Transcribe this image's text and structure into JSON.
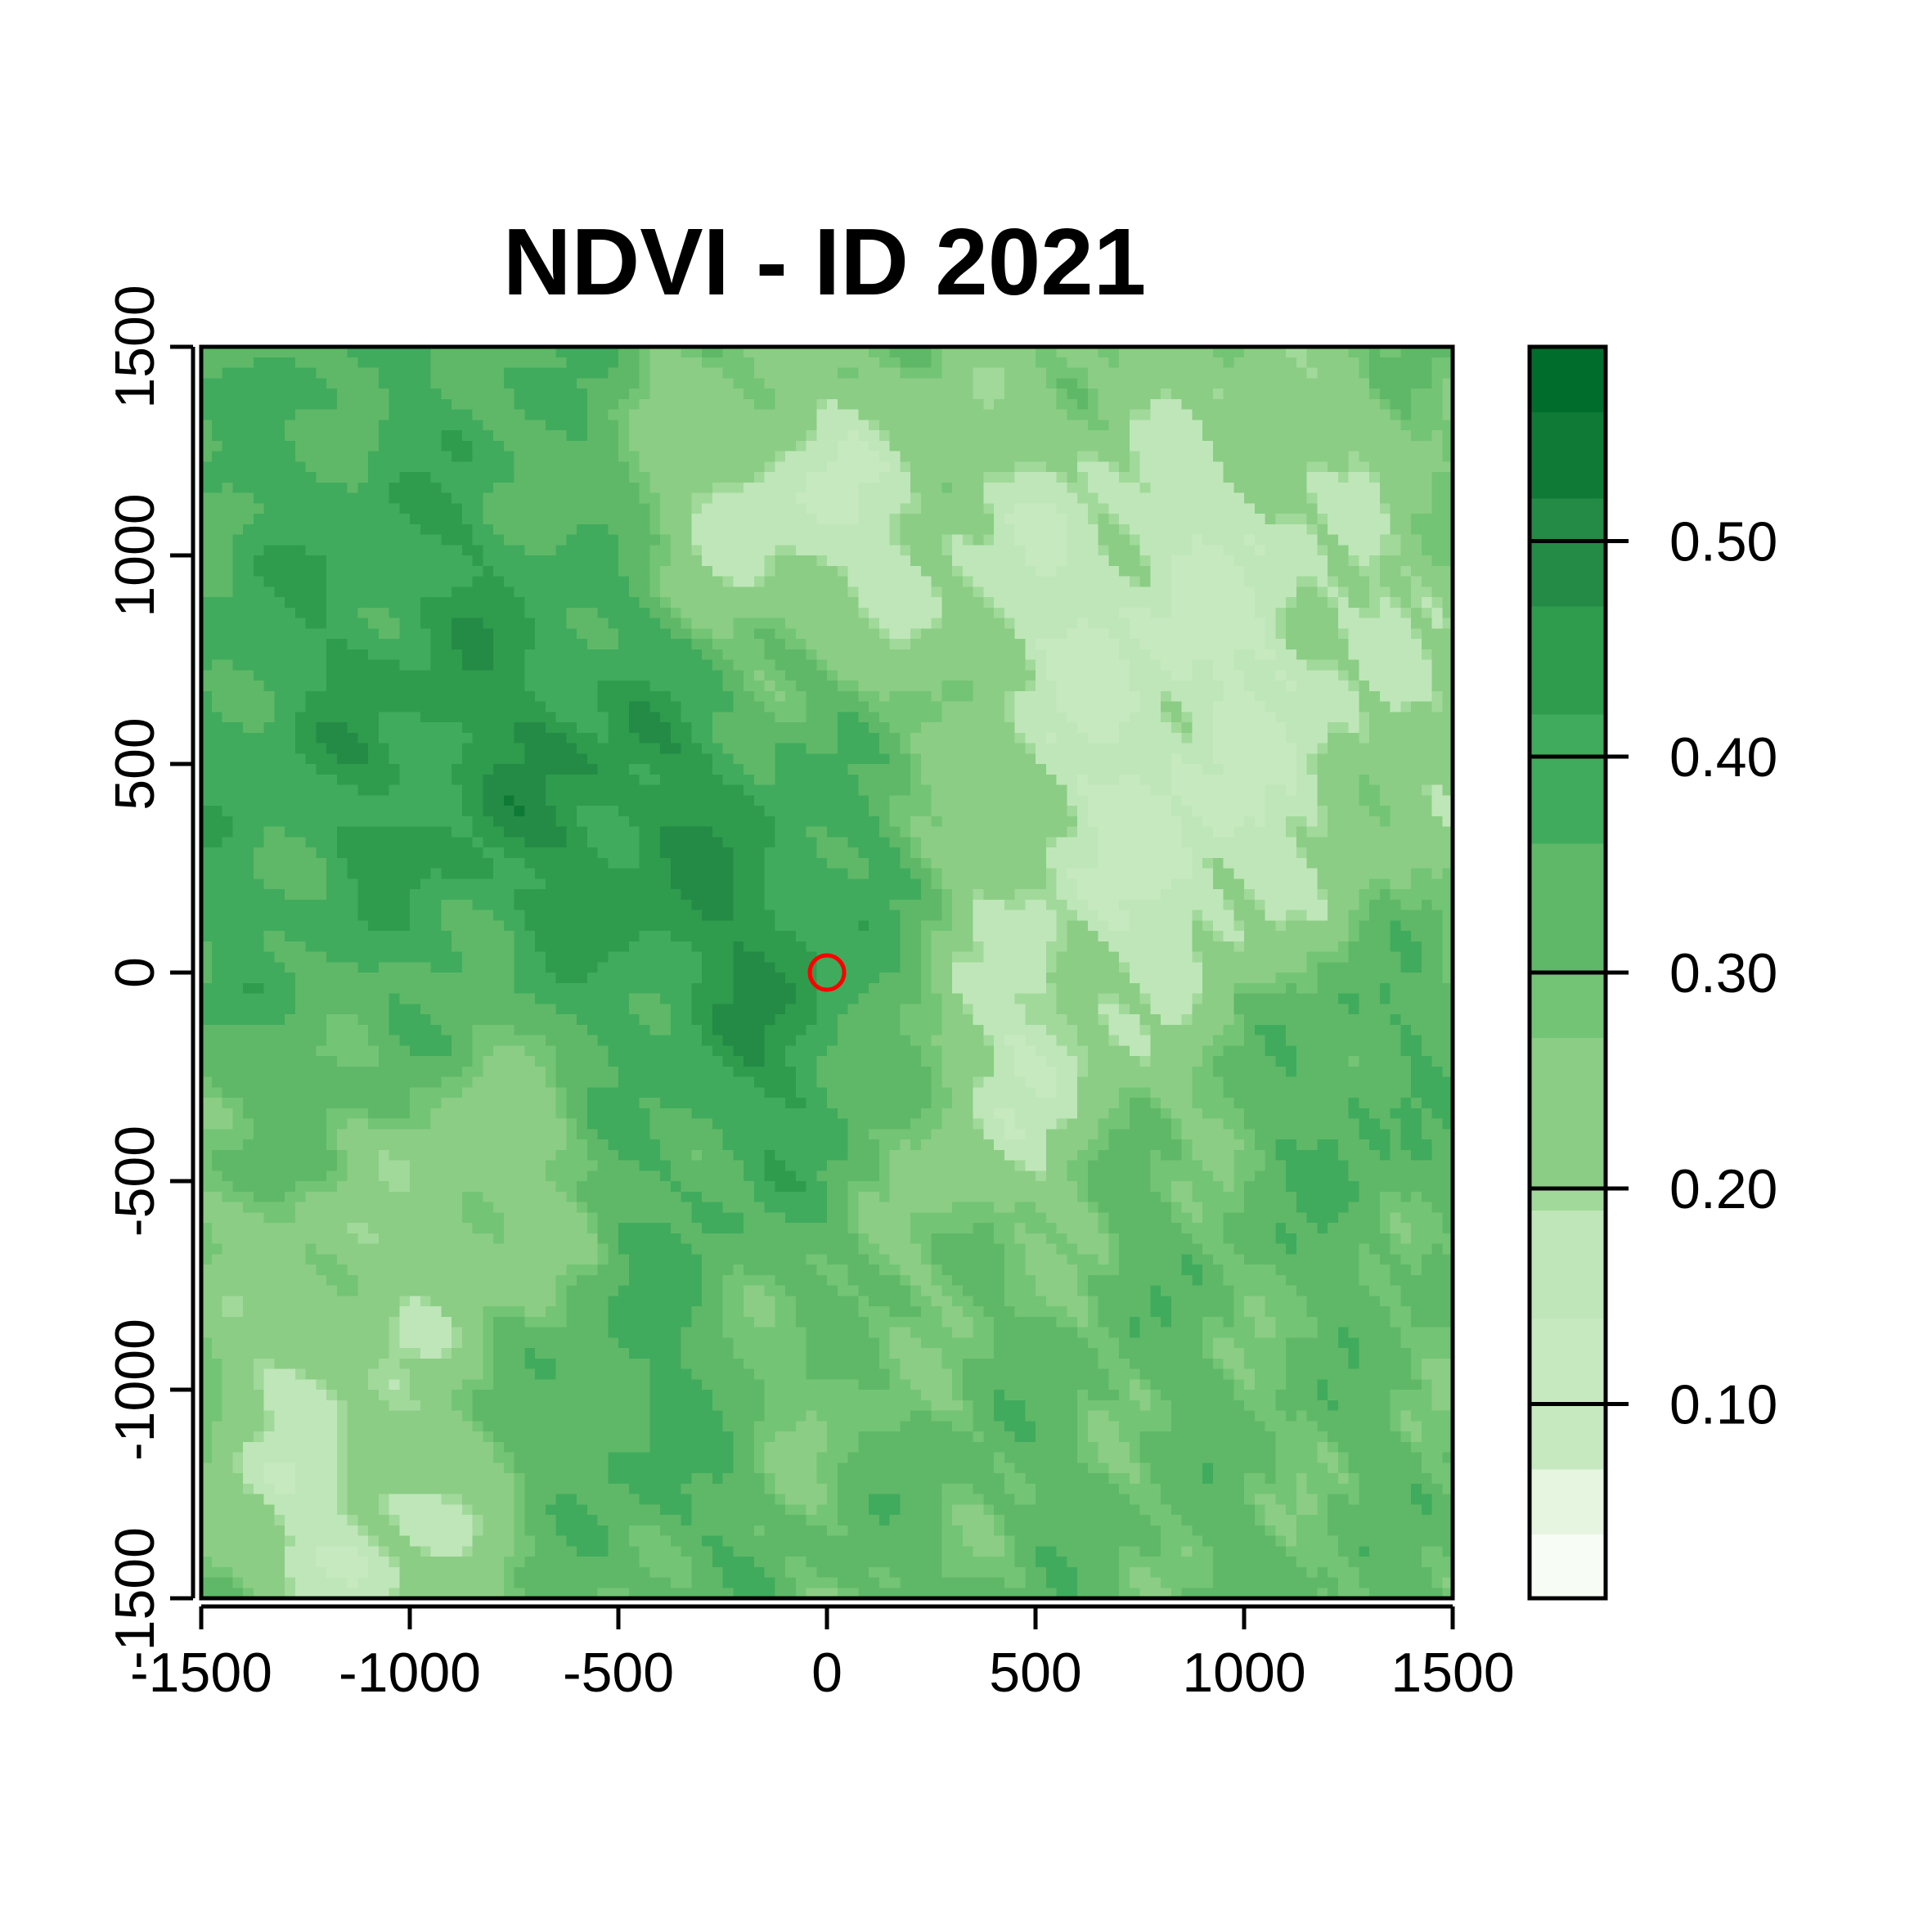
{
  "chart_data": {
    "type": "heatmap",
    "title": "NDVI - ID 2021",
    "xlabel": "",
    "ylabel": "",
    "xlim": [
      -1500,
      1500
    ],
    "ylim": [
      -1500,
      1500
    ],
    "x_ticks": [
      -1500,
      -1000,
      -500,
      0,
      500,
      1000,
      1500
    ],
    "y_ticks": [
      -1500,
      -1000,
      -500,
      0,
      500,
      1000,
      1500
    ],
    "x_tick_labels": [
      "-1500",
      "-1000",
      "-500",
      "0",
      "500",
      "1000",
      "1500"
    ],
    "y_tick_labels": [
      "-1500",
      "-1000",
      "-500",
      "0",
      "500",
      "1000",
      "1500"
    ],
    "legend": {
      "placement": "right",
      "range": [
        0.01,
        0.59
      ],
      "breaks": [
        0.01,
        0.04,
        0.07,
        0.14,
        0.19,
        0.2,
        0.27,
        0.3,
        0.36,
        0.42,
        0.47,
        0.52,
        0.56,
        0.59
      ],
      "colors": [
        "#f7fcf5",
        "#e5f5e0",
        "#c7e9c0",
        "#bfe6b8",
        "#a1d99b",
        "#8ccd85",
        "#74c476",
        "#5fb867",
        "#41ab5d",
        "#2e9b4d",
        "#238b45",
        "#0f7a35",
        "#006d2c",
        "#00441b"
      ],
      "tick_values": [
        0.1,
        0.2,
        0.3,
        0.4,
        0.5
      ],
      "tick_labels": [
        "0.10",
        "0.20",
        "0.30",
        "0.40",
        "0.50"
      ]
    },
    "marker": {
      "x": 0,
      "y": 0,
      "shape": "circle",
      "color": "#ff0000"
    },
    "raster": {
      "ncol": 120,
      "nrow": 120,
      "pattern": "approximate spatial NDVI field: higher values in the northwest and southwest-center, lower values in the northeast and south-center bright patches"
    }
  }
}
